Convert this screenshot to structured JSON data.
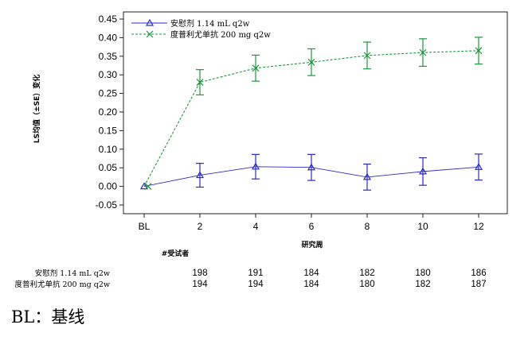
{
  "chart_data": {
    "type": "line",
    "title": "",
    "xlabel": "研究周",
    "ylabel": "LS均值（±SE）变化",
    "categories": [
      "BL",
      "2",
      "4",
      "6",
      "8",
      "10",
      "12"
    ],
    "ylim": [
      -0.05,
      0.45
    ],
    "yticks": [
      "-0.05",
      "0.00",
      "0.05",
      "0.10",
      "0.15",
      "0.20",
      "0.25",
      "0.30",
      "0.35",
      "0.40",
      "0.45"
    ],
    "legend_position": "top-left",
    "series": [
      {
        "name": "安慰剂 1.14 mL q2w",
        "color": "#2b2bcc",
        "marker": "triangle",
        "values": [
          0.0,
          0.03,
          0.053,
          0.051,
          0.025,
          0.04,
          0.052
        ],
        "se": [
          0.0,
          0.032,
          0.033,
          0.035,
          0.035,
          0.037,
          0.035
        ]
      },
      {
        "name": "度普利尤单抗 200 mg q2w",
        "color": "#1a9a3a",
        "marker": "x",
        "values": [
          0.0,
          0.28,
          0.318,
          0.334,
          0.352,
          0.36,
          0.365
        ],
        "se": [
          0.0,
          0.034,
          0.035,
          0.036,
          0.036,
          0.037,
          0.036
        ]
      }
    ],
    "n_table": {
      "header": "#受试者",
      "rows": [
        {
          "label": "安慰剂 1.14 mL q2w",
          "values": [
            "198",
            "191",
            "184",
            "182",
            "180",
            "186"
          ]
        },
        {
          "label": "度普利尤单抗 200 mg q2w",
          "values": [
            "194",
            "194",
            "184",
            "180",
            "182",
            "187"
          ]
        }
      ]
    }
  },
  "footnote": "BL：基线"
}
